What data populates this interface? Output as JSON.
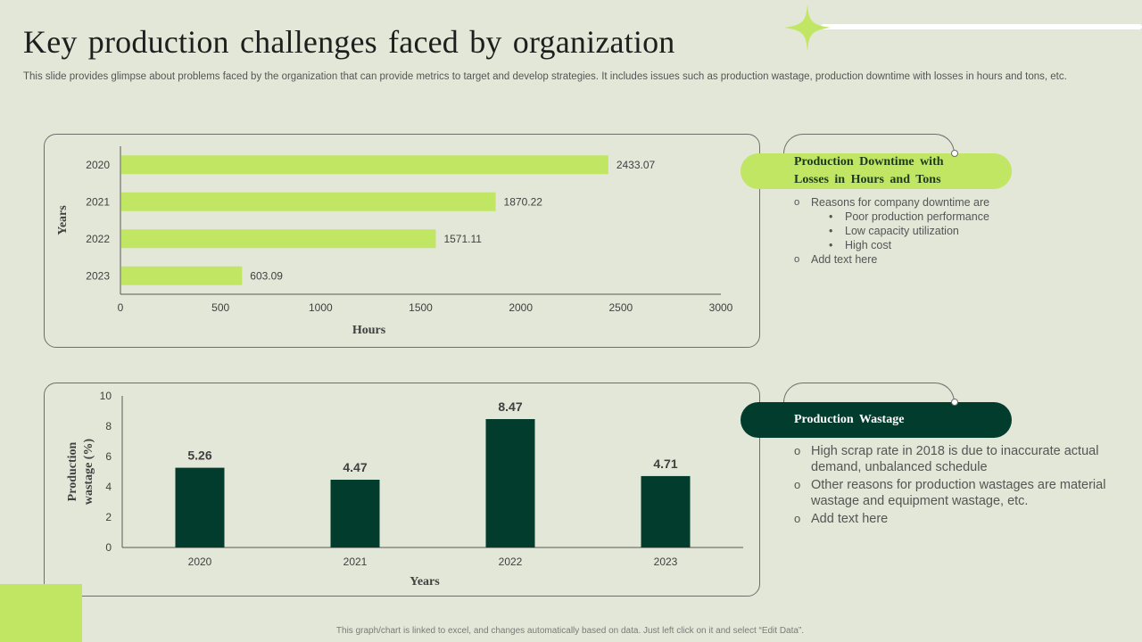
{
  "title": "Key production challenges faced by organization",
  "subtitle": "This slide provides glimpse about problems faced by the organization that can provide metrics to target and develop strategies. It includes issues such as production wastage, production downtime with losses in hours and tons, etc.",
  "colors": {
    "light_green": "#c0e664",
    "dark_green": "#023c2c",
    "background": "#e3e7d8"
  },
  "chart_data": [
    {
      "type": "bar",
      "orientation": "horizontal",
      "categories": [
        "2020",
        "2021",
        "2022",
        "2023"
      ],
      "values": [
        2433.07,
        1870.22,
        1571.11,
        603.09
      ],
      "value_labels": [
        "2433.07",
        "1870.22",
        "1571.11",
        "603.09"
      ],
      "xlabel": "Hours",
      "ylabel": "Years",
      "xlim": [
        0,
        3000
      ],
      "xticks": [
        "0",
        "500",
        "1000",
        "1500",
        "2000",
        "2500",
        "3000"
      ],
      "bar_color": "#c0e664",
      "grid": false
    },
    {
      "type": "bar",
      "orientation": "vertical",
      "categories": [
        "2020",
        "2021",
        "2022",
        "2023"
      ],
      "values": [
        5.26,
        4.47,
        8.47,
        4.71
      ],
      "value_labels": [
        "5.26",
        "4.47",
        "8.47",
        "4.71"
      ],
      "xlabel": "Years",
      "ylabel_lines": [
        "Production",
        "wastage (%)"
      ],
      "ylim": [
        0,
        10
      ],
      "yticks": [
        "0",
        "2",
        "4",
        "6",
        "8",
        "10"
      ],
      "bar_color": "#023c2c",
      "grid": false
    }
  ],
  "panel1": {
    "heading_line1": "Production  Downtime  with",
    "heading_line2": "Losses in Hours and Tons",
    "point1": "Reasons for company downtime are",
    "subpoints": [
      "Poor production performance",
      "Low capacity utilization",
      "High cost"
    ],
    "point2": "Add text here"
  },
  "panel2": {
    "heading": "Production  Wastage",
    "points": [
      "High scrap rate in 2018 is due to inaccurate actual demand, unbalanced schedule",
      "Other reasons for production wastages are material wastage and equipment wastage, etc.",
      "Add text here"
    ]
  },
  "footer": "This graph/chart is linked to excel, and changes automatically based on data.  Just left click on it and select “Edit Data”."
}
